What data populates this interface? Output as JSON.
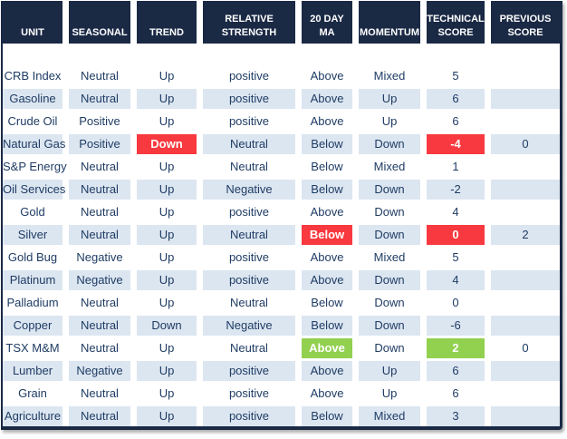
{
  "colors": {
    "header_bg": "#1a2944",
    "header_text": "#ffffff",
    "band_light": "#ffffff",
    "band_blue": "#dce6f1",
    "text": "#1f3c64",
    "highlight_red": "#f8393f",
    "highlight_green": "#92d050"
  },
  "table": {
    "columns": [
      {
        "key": "unit",
        "label": "UNIT"
      },
      {
        "key": "seasonal",
        "label": "SEASONAL"
      },
      {
        "key": "trend",
        "label": "TREND"
      },
      {
        "key": "relative_strength",
        "label": "RELATIVE STRENGTH"
      },
      {
        "key": "ma20",
        "label": "20 DAY MA"
      },
      {
        "key": "momentum",
        "label": "MOMENTUM"
      },
      {
        "key": "technical_score",
        "label": "TECHNICAL SCORE"
      },
      {
        "key": "previous_score",
        "label": "PREVIOUS SCORE"
      }
    ],
    "rows": [
      {
        "unit": "CRB Index",
        "seasonal": "Neutral",
        "trend": "Up",
        "relative_strength": "positive",
        "ma20": "Above",
        "momentum": "Mixed",
        "technical_score": "5",
        "previous_score": "",
        "highlights": {}
      },
      {
        "unit": "Gasoline",
        "seasonal": "Neutral",
        "trend": "Up",
        "relative_strength": "positive",
        "ma20": "Above",
        "momentum": "Up",
        "technical_score": "6",
        "previous_score": "",
        "highlights": {}
      },
      {
        "unit": "Crude Oil",
        "seasonal": "Positive",
        "trend": "Up",
        "relative_strength": "positive",
        "ma20": "Above",
        "momentum": "Up",
        "technical_score": "6",
        "previous_score": "",
        "highlights": {}
      },
      {
        "unit": "Natural Gas",
        "seasonal": "Positive",
        "trend": "Down",
        "relative_strength": "Neutral",
        "ma20": "Below",
        "momentum": "Down",
        "technical_score": "-4",
        "previous_score": "0",
        "highlights": {
          "trend": "red",
          "technical_score": "red"
        }
      },
      {
        "unit": "S&P Energy",
        "seasonal": "Neutral",
        "trend": "Up",
        "relative_strength": "Neutral",
        "ma20": "Below",
        "momentum": "Mixed",
        "technical_score": "1",
        "previous_score": "",
        "highlights": {}
      },
      {
        "unit": "Oil Services",
        "seasonal": "Neutral",
        "trend": "Up",
        "relative_strength": "Negative",
        "ma20": "Below",
        "momentum": "Down",
        "technical_score": "-2",
        "previous_score": "",
        "highlights": {}
      },
      {
        "unit": "Gold",
        "seasonal": "Neutral",
        "trend": "Up",
        "relative_strength": "positive",
        "ma20": "Above",
        "momentum": "Down",
        "technical_score": "4",
        "previous_score": "",
        "highlights": {}
      },
      {
        "unit": "Silver",
        "seasonal": "Neutral",
        "trend": "Up",
        "relative_strength": "Neutral",
        "ma20": "Below",
        "momentum": "Down",
        "technical_score": "0",
        "previous_score": "2",
        "highlights": {
          "ma20": "red",
          "technical_score": "red"
        }
      },
      {
        "unit": "Gold Bug",
        "seasonal": "Negative",
        "trend": "Up",
        "relative_strength": "positive",
        "ma20": "Above",
        "momentum": "Mixed",
        "technical_score": "5",
        "previous_score": "",
        "highlights": {}
      },
      {
        "unit": "Platinum",
        "seasonal": "Negative",
        "trend": "Up",
        "relative_strength": "positive",
        "ma20": "Above",
        "momentum": "Down",
        "technical_score": "4",
        "previous_score": "",
        "highlights": {}
      },
      {
        "unit": "Palladium",
        "seasonal": "Neutral",
        "trend": "Up",
        "relative_strength": "Neutral",
        "ma20": "Below",
        "momentum": "Down",
        "technical_score": "0",
        "previous_score": "",
        "highlights": {}
      },
      {
        "unit": "Copper",
        "seasonal": "Neutral",
        "trend": "Down",
        "relative_strength": "Negative",
        "ma20": "Below",
        "momentum": "Down",
        "technical_score": "-6",
        "previous_score": "",
        "highlights": {}
      },
      {
        "unit": "TSX M&M",
        "seasonal": "Neutral",
        "trend": "Up",
        "relative_strength": "Neutral",
        "ma20": "Above",
        "momentum": "Down",
        "technical_score": "2",
        "previous_score": "0",
        "highlights": {
          "ma20": "green",
          "technical_score": "green"
        }
      },
      {
        "unit": "Lumber",
        "seasonal": "Negative",
        "trend": "Up",
        "relative_strength": "positive",
        "ma20": "Above",
        "momentum": "Up",
        "technical_score": "6",
        "previous_score": "",
        "highlights": {}
      },
      {
        "unit": "Grain",
        "seasonal": "Neutral",
        "trend": "Up",
        "relative_strength": "positive",
        "ma20": "Above",
        "momentum": "Up",
        "technical_score": "6",
        "previous_score": "",
        "highlights": {}
      },
      {
        "unit": "Agriculture",
        "seasonal": "Neutral",
        "trend": "Up",
        "relative_strength": "positive",
        "ma20": "Below",
        "momentum": "Mixed",
        "technical_score": "3",
        "previous_score": "",
        "highlights": {}
      }
    ]
  }
}
